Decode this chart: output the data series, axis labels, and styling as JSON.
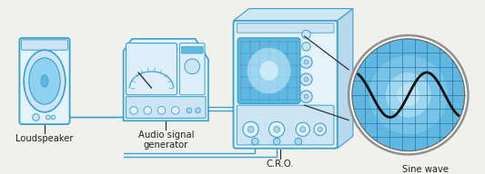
{
  "bg_color": "#f0f0ec",
  "ec": "#3aA0cc",
  "fc_light": "#e4f2fa",
  "fc_mid": "#cce4f4",
  "fc_dark": "#b0d4ec",
  "screen_blue": "#60b8e0",
  "screen_light": "#90d0f0",
  "screen_bright": "#c8eaf8",
  "grid_color": "#2070a0",
  "sine_color": "#101010",
  "wire_color": "#3aA0cc",
  "label_color": "#222222",
  "lfs": 7.2,
  "labels": {
    "loudspeaker": "Loudspeaker",
    "audio_signal": "Audio signal\ngenerator",
    "cro": "C.R.O.",
    "sine_wave": "Sine wave"
  }
}
